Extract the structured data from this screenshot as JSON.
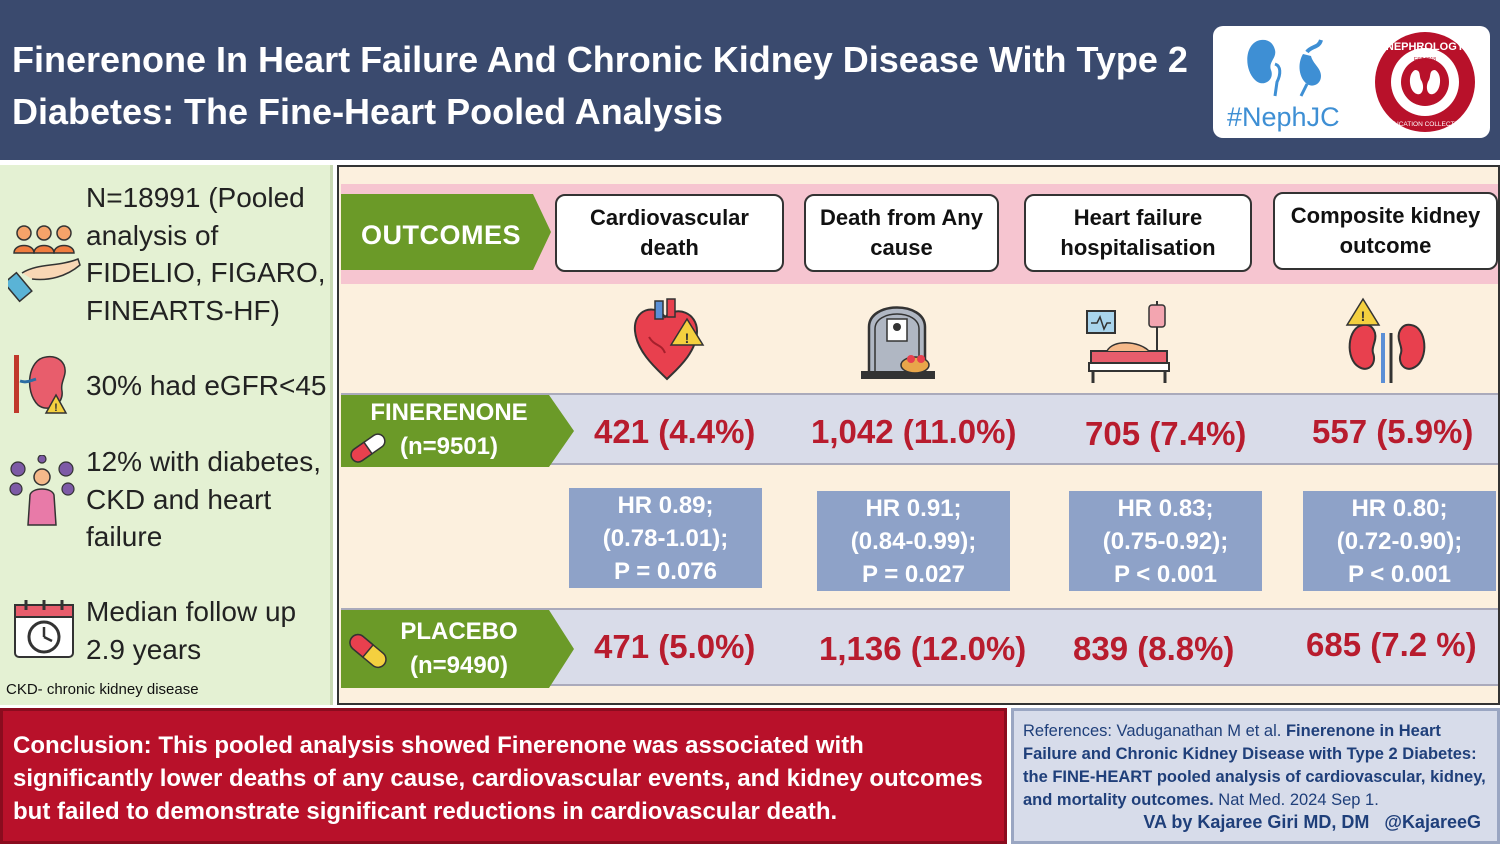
{
  "header": {
    "title": "Finerenone In Heart Failure And Chronic Kidney Disease With Type 2 Diabetes: The Fine-Heart Pooled Analysis",
    "logo_nephjc": "#NephJC",
    "logo_nec_top": "NEPHROLOGY",
    "logo_nec_bottom": "EDUCATION COLLECTIVE",
    "logo_nec_est": "EST 2018"
  },
  "left_panel": {
    "stat1": "N=18991 (Pooled analysis of FIDELIO, FIGARO, FINEARTS-HF)",
    "stat2": "30% had eGFR<45",
    "stat3": "12% with diabetes, CKD and heart failure",
    "stat4": "Median follow up 2.9 years",
    "footnote": "CKD- chronic kidney disease",
    "icons": [
      "group-care-icon",
      "kidney-warning-icon",
      "patient-conditions-icon",
      "calendar-clock-icon"
    ]
  },
  "outcomes": {
    "label": "OUTCOMES",
    "columns": [
      {
        "name": "Cardiovascular death",
        "icon": "heart-warning-icon",
        "finerenone": "421 (4.4%)",
        "placebo": "471 (5.0%)",
        "hr_line1": "HR 0.89;",
        "hr_line2": "(0.78-1.01);",
        "hr_line3": "P = 0.076"
      },
      {
        "name": "Death from Any cause",
        "icon": "gravestone-icon",
        "finerenone": "1,042 (11.0%)",
        "placebo": "1,136 (12.0%)",
        "hr_line1": "HR 0.91;",
        "hr_line2": "(0.84-0.99);",
        "hr_line3": "P = 0.027"
      },
      {
        "name": "Heart failure hospitalisation",
        "icon": "hospital-bed-icon",
        "finerenone": "705 (7.4%)",
        "placebo": "839 (8.8%)",
        "hr_line1": "HR 0.83;",
        "hr_line2": "(0.75-0.92);",
        "hr_line3": "P < 0.001"
      },
      {
        "name": "Composite kidney outcome",
        "icon": "kidney-warning-icon",
        "finerenone": "557 (5.9%)",
        "placebo": "685 (7.2 %)",
        "hr_line1": "HR 0.80;",
        "hr_line2": "(0.72-0.90);",
        "hr_line3": "P < 0.001"
      }
    ]
  },
  "arms": {
    "finerenone_line1": "FINERENONE",
    "finerenone_line2": "(n=9501)",
    "placebo_line1": "PLACEBO",
    "placebo_line2": "(n=9490)"
  },
  "footer": {
    "conclusion": "Conclusion: This pooled analysis showed Finerenone was associated with significantly lower deaths of any cause, cardiovascular events, and kidney outcomes but failed to demonstrate significant reductions in cardiovascular death.",
    "ref_prefix": "References: Vaduganathan M et al.",
    "ref_title": "Finerenone in Heart Failure and Chronic Kidney Disease with Type 2 Diabetes: the FINE-HEART pooled analysis of cardiovascular, kidney, and mortality outcomes.",
    "ref_suffix": "Nat Med. 2024 Sep 1.",
    "credit": "VA by Kajaree Giri MD, DM   @KajareeG"
  },
  "colors": {
    "header_bg": "#3a4a6e",
    "arrow_green": "#6b9a28",
    "value_red": "#b81c2e",
    "hr_box": "#8ea2c8",
    "conclusion_bg": "#b8112a",
    "outcomes_band": "#f6c5d0",
    "left_panel_bg": "#e4f1d3"
  }
}
